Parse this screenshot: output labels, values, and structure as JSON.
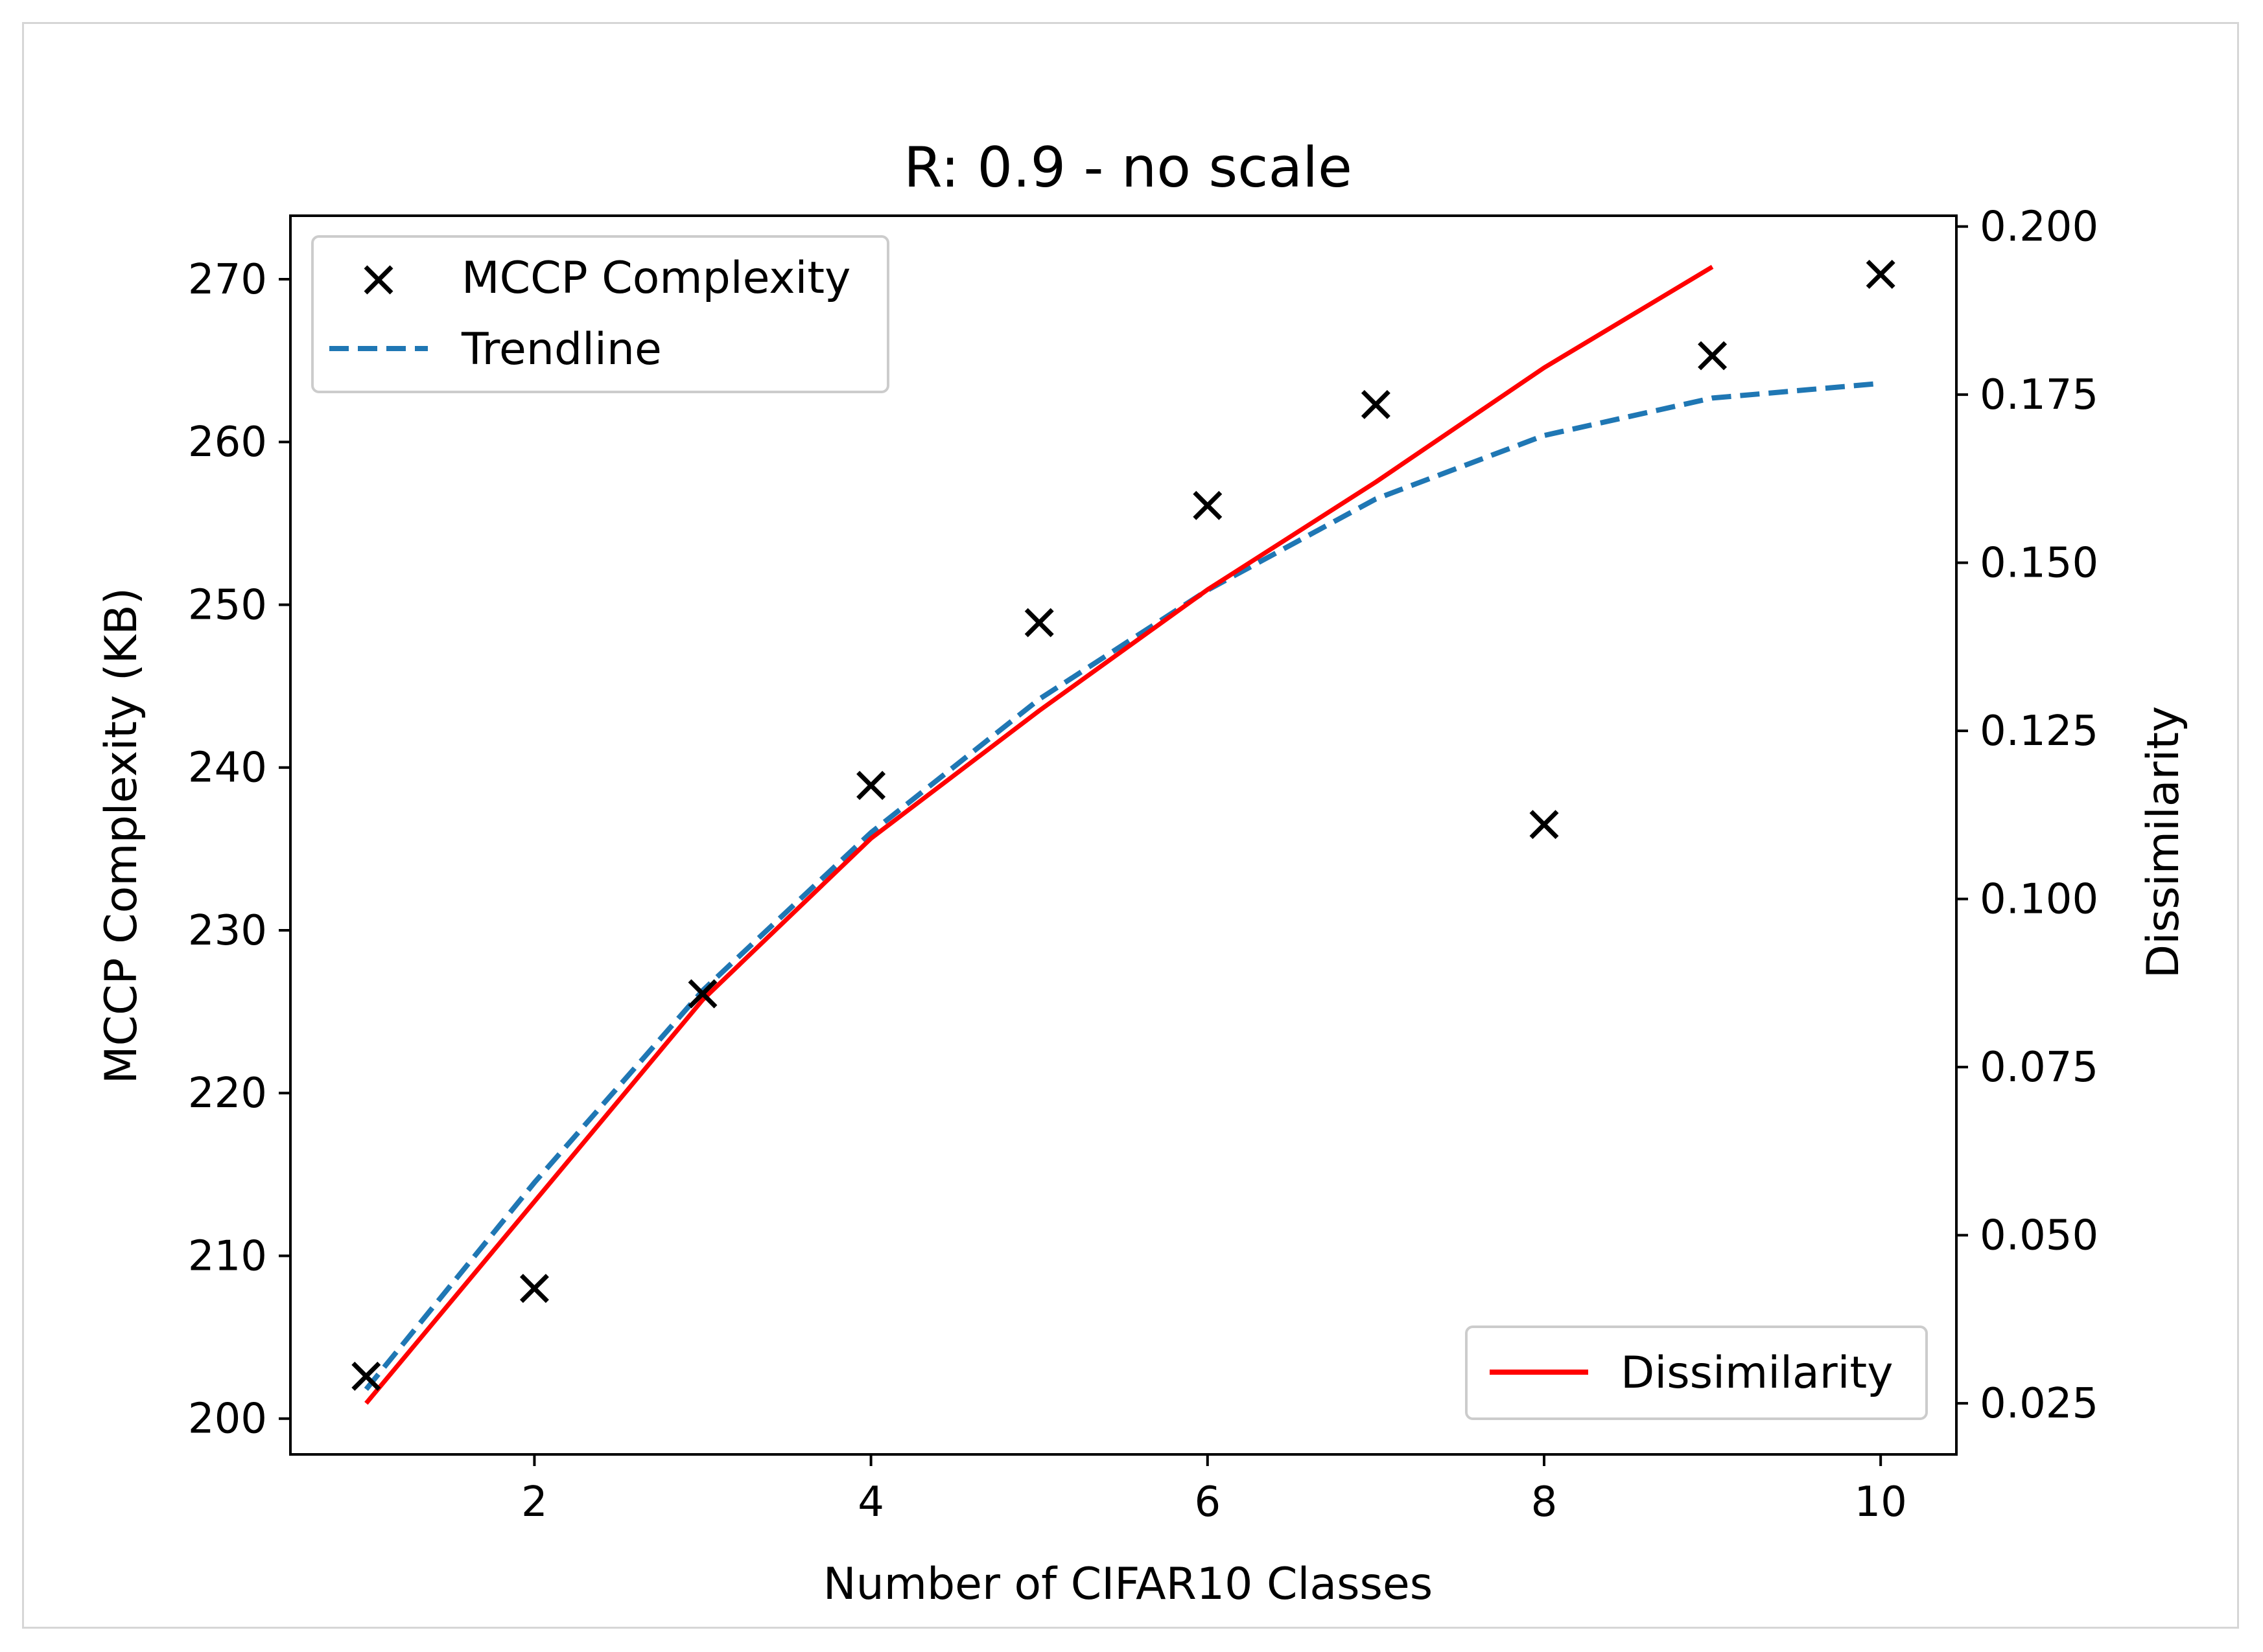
{
  "chart_data": {
    "type": "scatter",
    "title": "R: 0.9 - no scale",
    "xlabel": "Number of CIFAR10 Classes",
    "ylabel": "MCCP Complexity (KB)",
    "y2label": "Dissimilarity",
    "xlim": [
      0.55,
      10.45
    ],
    "ylim": [
      197.8,
      273.9
    ],
    "y2lim": [
      0.0174,
      0.2016
    ],
    "xticks": [
      2,
      4,
      6,
      8,
      10
    ],
    "yticks": [
      200,
      210,
      220,
      230,
      240,
      250,
      260,
      270
    ],
    "y2ticks": [
      "0.025",
      "0.050",
      "0.075",
      "0.100",
      "0.125",
      "0.150",
      "0.175",
      "0.200"
    ],
    "grid": false,
    "legend_left_position": "upper left",
    "legend_right_position": "lower right",
    "series": [
      {
        "name": "MCCP Complexity",
        "kind": "scatter",
        "axis": "left",
        "color": "#000000",
        "x": [
          1,
          2,
          3,
          4,
          5,
          6,
          7,
          8,
          9,
          10
        ],
        "values": [
          202.6,
          208.0,
          226.1,
          238.9,
          248.9,
          256.1,
          262.3,
          236.5,
          265.3,
          270.3
        ]
      },
      {
        "name": "Trendline",
        "kind": "line",
        "style": "dashed",
        "axis": "left",
        "color": "#1f77b4",
        "x": [
          1,
          2,
          3,
          4,
          5,
          6,
          7,
          8,
          9,
          10
        ],
        "values": [
          201.8,
          214.5,
          226.3,
          236.0,
          244.2,
          250.9,
          256.5,
          260.4,
          262.7,
          263.6
        ]
      },
      {
        "name": "Dissimilarity",
        "kind": "line",
        "style": "solid",
        "axis": "right",
        "color": "#ff0000",
        "x": [
          1,
          2,
          3,
          4,
          5,
          6,
          7,
          8,
          9
        ],
        "values": [
          0.025,
          0.055,
          0.085,
          0.109,
          0.128,
          0.146,
          0.162,
          0.179,
          0.194
        ]
      }
    ]
  }
}
